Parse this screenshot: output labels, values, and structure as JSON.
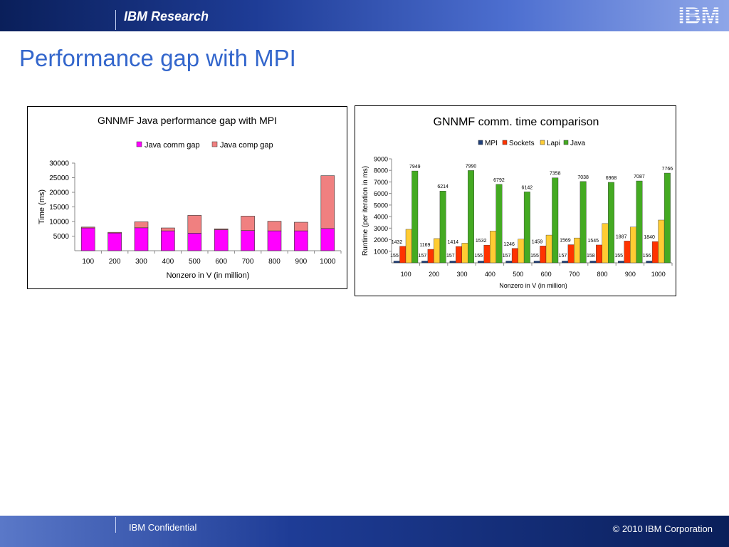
{
  "header": {
    "title": "IBM Research",
    "logo_text": "IBM"
  },
  "slide": {
    "title": "Performance gap with MPI"
  },
  "footer": {
    "left": "IBM Confidential",
    "right": "© 2010 IBM Corporation"
  },
  "colors": {
    "java_comm_gap": "#ff00ff",
    "java_comp_gap": "#f08080",
    "mpi": "#1f3f7a",
    "sockets": "#ff3300",
    "lapi": "#ffcc33",
    "java": "#44aa22"
  },
  "chart_data": [
    {
      "type": "bar",
      "stacked": true,
      "title": "GNNMF Java performance gap with MPI",
      "xlabel": "Nonzero in V (in million)",
      "ylabel": "Time (ms)",
      "categories": [
        "100",
        "200",
        "300",
        "400",
        "500",
        "600",
        "700",
        "800",
        "900",
        "1000"
      ],
      "ylim": [
        0,
        30000
      ],
      "yticks": [
        "5000",
        "10000",
        "15000",
        "20000",
        "25000",
        "30000"
      ],
      "legend": "top",
      "grid": false,
      "series": [
        {
          "name": "Java comm gap",
          "values": [
            7800,
            6050,
            7850,
            6800,
            6000,
            7200,
            6900,
            6800,
            6800,
            7600
          ]
        },
        {
          "name": "Java comp gap",
          "values": [
            300,
            250,
            2050,
            1000,
            6100,
            300,
            4950,
            3300,
            2950,
            18100
          ]
        }
      ]
    },
    {
      "type": "bar",
      "title": "GNNMF comm. time comparison",
      "xlabel": "Nonzero in V (in million)",
      "ylabel": "Runtime (per iteration in ms)",
      "categories": [
        "100",
        "200",
        "300",
        "400",
        "500",
        "600",
        "700",
        "800",
        "900",
        "1000"
      ],
      "ylim": [
        0,
        9000
      ],
      "yticks": [
        "1000",
        "2000",
        "3000",
        "4000",
        "5000",
        "6000",
        "7000",
        "8000",
        "9000"
      ],
      "legend": "top",
      "grid": false,
      "series": [
        {
          "name": "MPI",
          "values": [
            155,
            157,
            157,
            155,
            157,
            155,
            157,
            158,
            155,
            156
          ],
          "labels": [
            "155",
            "157",
            "157",
            "155",
            "157",
            "155",
            "157",
            "158",
            "155",
            "156"
          ]
        },
        {
          "name": "Sockets",
          "values": [
            1432,
            1169,
            1414,
            1532,
            1246,
            1459,
            1569,
            1545,
            1887,
            1840
          ],
          "labels": [
            "1432",
            "1169",
            "1414",
            "1532",
            "1246",
            "1459",
            "1569",
            "1545",
            "1887",
            "1840"
          ]
        },
        {
          "name": "Lapi",
          "values": [
            2900,
            2100,
            1700,
            2750,
            2050,
            2400,
            2150,
            3400,
            3100,
            3700
          ]
        },
        {
          "name": "Java",
          "values": [
            7949,
            6214,
            7990,
            6792,
            6142,
            7358,
            7038,
            6968,
            7087,
            7766
          ],
          "labels": [
            "7949",
            "6214",
            "7990",
            "6792",
            "6142",
            "7358",
            "7038",
            "6968",
            "7087",
            "7766"
          ]
        }
      ]
    }
  ]
}
